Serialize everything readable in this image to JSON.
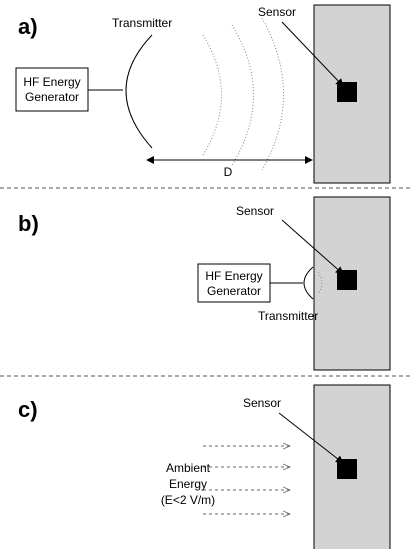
{
  "panels": [
    {
      "label": "a)",
      "generator": [
        "HF Energy",
        "Generator"
      ],
      "transmitter": "Transmitter",
      "sensor": "Sensor",
      "distance": "D"
    },
    {
      "label": "b)",
      "generator": [
        "HF Energy",
        "Generator"
      ],
      "transmitter": "Transmitter",
      "sensor": "Sensor"
    },
    {
      "label": "c)",
      "sensor": "Sensor",
      "ambient": [
        "Ambient",
        "Energy",
        "(E<2 V/m)"
      ]
    }
  ]
}
